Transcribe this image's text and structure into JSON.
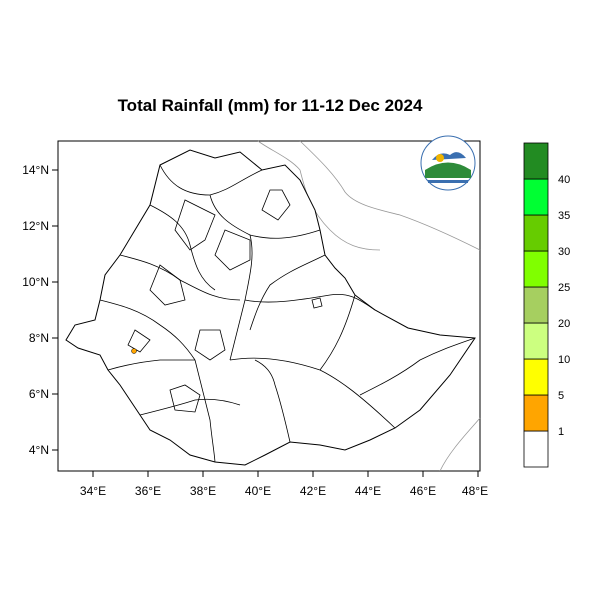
{
  "title": "Total Rainfall (mm) for 11-12 Dec 2024",
  "map": {
    "x_ticks": [
      "34°E",
      "36°E",
      "38°E",
      "40°E",
      "42°E",
      "44°E",
      "46°E",
      "48°E"
    ],
    "y_ticks": [
      "14°N",
      "12°N",
      "10°N",
      "8°N",
      "6°N",
      "4°N"
    ],
    "lon_range": [
      33,
      48.2
    ],
    "lat_range": [
      3.2,
      15.0
    ],
    "rain_spot": {
      "lon": 35.7,
      "lat": 7.7,
      "class": "1-5"
    }
  },
  "legend": {
    "labels": [
      "1",
      "5",
      "10",
      "20",
      "25",
      "30",
      "35",
      "40"
    ],
    "colors": [
      "#ffffff",
      "#ffa500",
      "#ffff00",
      "#ccff80",
      "#a6cf60",
      "#80ff00",
      "#66cc00",
      "#00ff33",
      "#228b22"
    ]
  },
  "logo": {
    "name": "agency-logo"
  }
}
